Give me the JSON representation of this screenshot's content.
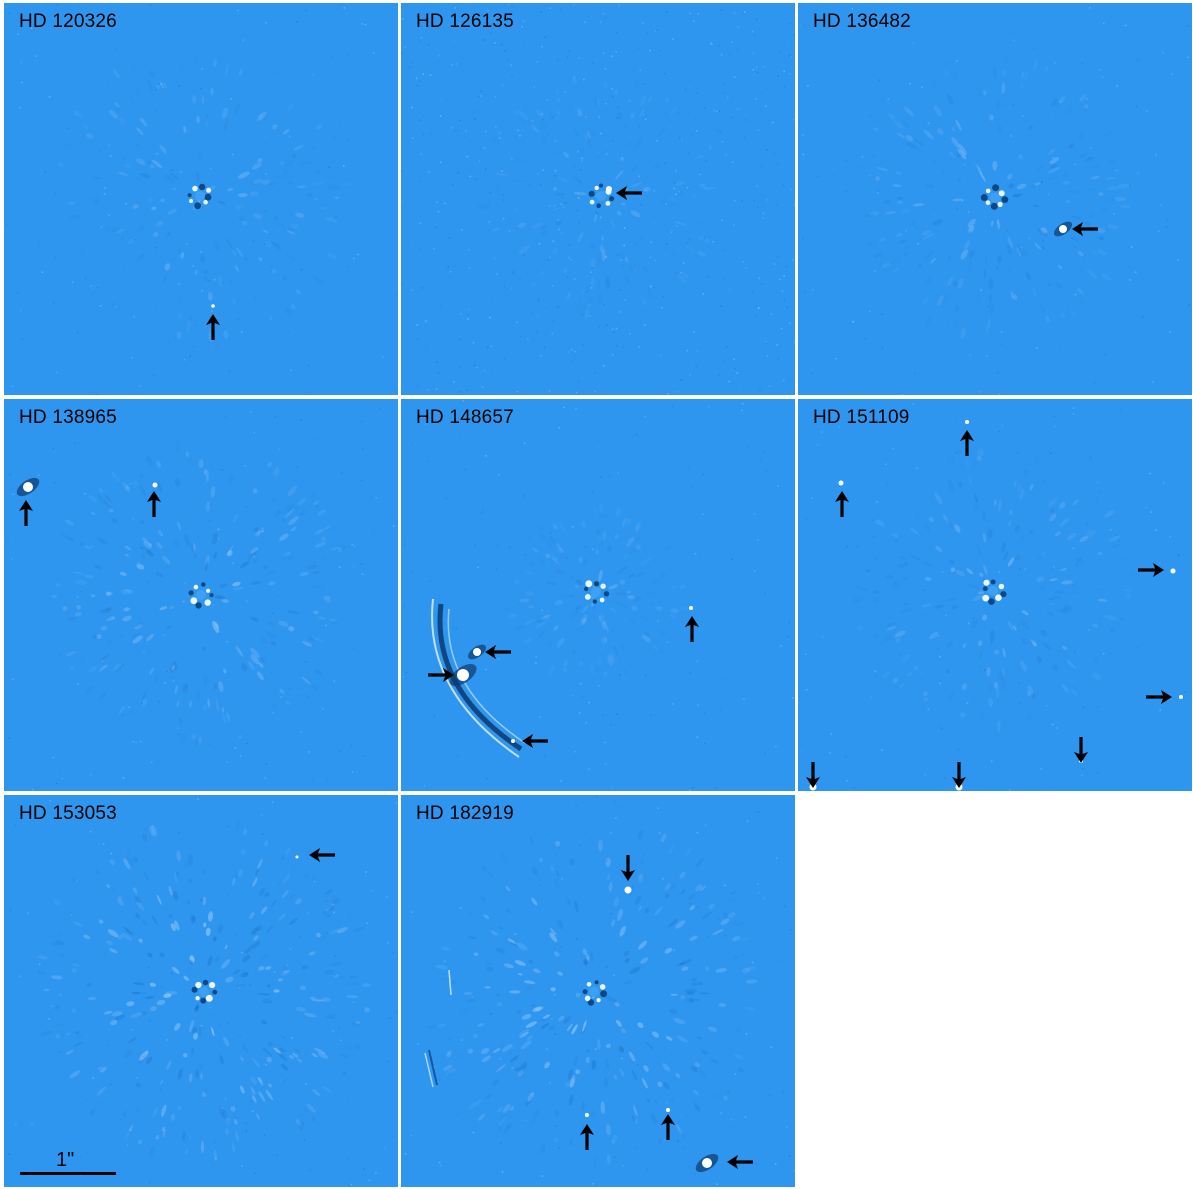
{
  "figure": {
    "panels": [
      {
        "id": "p1",
        "label": "HD 120326"
      },
      {
        "id": "p2",
        "label": "HD 126135"
      },
      {
        "id": "p3",
        "label": "HD 136482"
      },
      {
        "id": "p4",
        "label": "HD 138965"
      },
      {
        "id": "p5",
        "label": "HD 148657"
      },
      {
        "id": "p6",
        "label": "HD 151109"
      },
      {
        "id": "p7",
        "label": "HD 153053"
      },
      {
        "id": "p8",
        "label": "HD 182919"
      }
    ],
    "scale_bar": {
      "label": "1\""
    },
    "colors": {
      "background": "#2f96f0",
      "arrow": "#000000",
      "source": "#ffffff"
    }
  }
}
